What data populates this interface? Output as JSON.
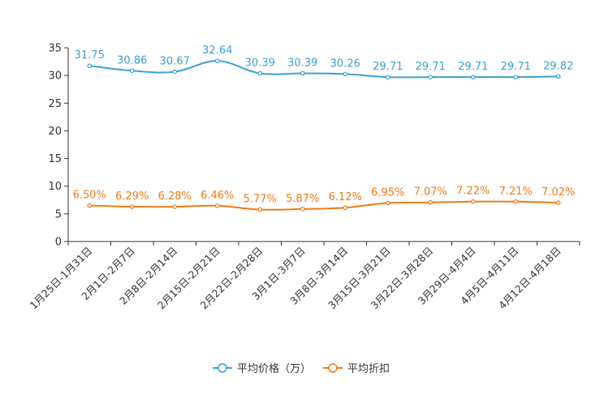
{
  "chart_data": {
    "type": "line",
    "categories": [
      "1月25日-1月31日",
      "2月1日-2月7日",
      "2月8日-2月14日",
      "2月15日-2月21日",
      "2月22日-2月28日",
      "3月1日-3月7日",
      "3月8日-3月14日",
      "3月15日-3月21日",
      "3月22日-3月28日",
      "3月29日-4月4日",
      "4月5日-4月11日",
      "4月12日-4月18日"
    ],
    "series": [
      {
        "name": "平均价格（万）",
        "color": "#3a9fd6",
        "values": [
          31.75,
          30.86,
          30.67,
          32.64,
          30.39,
          30.39,
          30.26,
          29.71,
          29.71,
          29.71,
          29.71,
          29.82
        ],
        "labels": [
          "31.75",
          "30.86",
          "30.67",
          "32.64",
          "30.39",
          "30.39",
          "30.26",
          "29.71",
          "29.71",
          "29.71",
          "29.71",
          "29.82"
        ]
      },
      {
        "name": "平均折扣",
        "color": "#f07a18",
        "values": [
          6.5,
          6.29,
          6.28,
          6.46,
          5.77,
          5.87,
          6.12,
          6.95,
          7.07,
          7.22,
          7.21,
          7.02
        ],
        "labels": [
          "6.50%",
          "6.29%",
          "6.28%",
          "6.46%",
          "5.77%",
          "5.87%",
          "6.12%",
          "6.95%",
          "7.07%",
          "7.22%",
          "7.21%",
          "7.02%"
        ]
      }
    ],
    "y_ticks": [
      "0",
      "5",
      "10",
      "15",
      "20",
      "25",
      "30",
      "35"
    ],
    "ylim": [
      0,
      35
    ],
    "legend_position": "bottom-center",
    "title": "",
    "xlabel": "",
    "ylabel": ""
  }
}
